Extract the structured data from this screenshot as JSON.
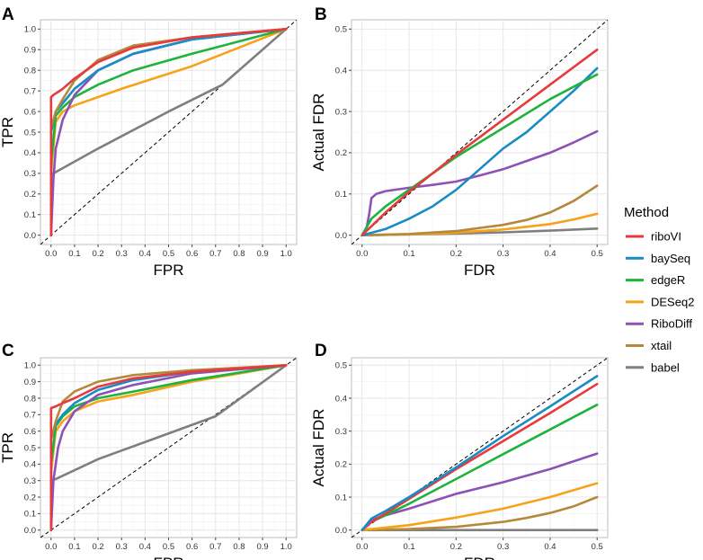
{
  "colors": {
    "riboVI": "#e8393d",
    "baySeq": "#1a8cc4",
    "edgeR": "#1db33c",
    "DESeq2": "#f7a21b",
    "RiboDiff": "#8e51b6",
    "xtail": "#b5893c",
    "babel": "#7f7f7f"
  },
  "legend": {
    "title": "Method",
    "entries": [
      "riboVI",
      "baySeq",
      "edgeR",
      "DESeq2",
      "RiboDiff",
      "xtail",
      "babel"
    ]
  },
  "chart_data": [
    {
      "tag": "A",
      "type": "line",
      "xlabel": "FPR",
      "ylabel": "TPR",
      "xlim": [
        0,
        1
      ],
      "ylim": [
        0,
        1
      ],
      "xticks": [
        "0.0",
        "0.1",
        "0.2",
        "0.3",
        "0.4",
        "0.5",
        "0.6",
        "0.7",
        "0.8",
        "0.9",
        "1.0"
      ],
      "yticks": [
        "0.0",
        "0.1",
        "0.2",
        "0.3",
        "0.4",
        "0.5",
        "0.6",
        "0.7",
        "0.8",
        "0.9",
        "1.0"
      ],
      "diagonal": true,
      "series": [
        {
          "name": "babel",
          "x": [
            0,
            0,
            0.01,
            0.2,
            0.5,
            0.73,
            1
          ],
          "y": [
            0,
            0.29,
            0.3,
            0.42,
            0.6,
            0.73,
            1
          ]
        },
        {
          "name": "DESeq2",
          "x": [
            0,
            0,
            0.02,
            0.05,
            0.1,
            0.3,
            0.6,
            1
          ],
          "y": [
            0,
            0.3,
            0.55,
            0.6,
            0.63,
            0.71,
            0.82,
            1
          ]
        },
        {
          "name": "edgeR",
          "x": [
            0,
            0,
            0.02,
            0.05,
            0.1,
            0.2,
            0.35,
            0.6,
            1
          ],
          "y": [
            0,
            0.35,
            0.58,
            0.62,
            0.67,
            0.73,
            0.8,
            0.88,
            1
          ]
        },
        {
          "name": "RiboDiff",
          "x": [
            0,
            0.01,
            0.02,
            0.05,
            0.1,
            0.2,
            0.35,
            0.6,
            1
          ],
          "y": [
            0,
            0.27,
            0.42,
            0.56,
            0.68,
            0.8,
            0.88,
            0.95,
            1
          ]
        },
        {
          "name": "baySeq",
          "x": [
            0,
            0,
            0.02,
            0.05,
            0.1,
            0.2,
            0.35,
            0.6,
            1
          ],
          "y": [
            0,
            0.5,
            0.6,
            0.64,
            0.71,
            0.8,
            0.88,
            0.95,
            1
          ]
        },
        {
          "name": "xtail",
          "x": [
            0,
            0,
            0.02,
            0.05,
            0.1,
            0.2,
            0.35,
            0.6,
            1
          ],
          "y": [
            0,
            0.52,
            0.6,
            0.66,
            0.75,
            0.85,
            0.92,
            0.96,
            1
          ]
        },
        {
          "name": "riboVI",
          "x": [
            0,
            0,
            0.01,
            0.05,
            0.1,
            0.2,
            0.35,
            0.6,
            1
          ],
          "y": [
            0,
            0.67,
            0.68,
            0.71,
            0.76,
            0.84,
            0.91,
            0.96,
            1
          ]
        }
      ]
    },
    {
      "tag": "B",
      "type": "line",
      "xlabel": "FDR",
      "ylabel": "Actual FDR",
      "xlim": [
        0,
        0.5
      ],
      "ylim": [
        0,
        0.5
      ],
      "xticks": [
        "0.0",
        "0.1",
        "0.2",
        "0.3",
        "0.4",
        "0.5"
      ],
      "yticks": [
        "0.0",
        "0.1",
        "0.2",
        "0.3",
        "0.4",
        "0.5"
      ],
      "diagonal": true,
      "series": [
        {
          "name": "babel",
          "x": [
            0,
            0.1,
            0.2,
            0.3,
            0.4,
            0.5
          ],
          "y": [
            0,
            0.002,
            0.004,
            0.007,
            0.011,
            0.016
          ]
        },
        {
          "name": "DESeq2",
          "x": [
            0,
            0.1,
            0.2,
            0.3,
            0.4,
            0.45,
            0.5
          ],
          "y": [
            0,
            0.002,
            0.006,
            0.014,
            0.027,
            0.038,
            0.052
          ]
        },
        {
          "name": "xtail",
          "x": [
            0,
            0.1,
            0.2,
            0.3,
            0.35,
            0.4,
            0.45,
            0.5
          ],
          "y": [
            0,
            0.003,
            0.01,
            0.025,
            0.037,
            0.055,
            0.083,
            0.12
          ]
        },
        {
          "name": "RiboDiff",
          "x": [
            0,
            0.01,
            0.015,
            0.02,
            0.03,
            0.05,
            0.1,
            0.15,
            0.2,
            0.25,
            0.3,
            0.35,
            0.4,
            0.45,
            0.5
          ],
          "y": [
            0,
            0.02,
            0.05,
            0.09,
            0.1,
            0.107,
            0.115,
            0.122,
            0.13,
            0.145,
            0.16,
            0.18,
            0.2,
            0.225,
            0.252
          ]
        },
        {
          "name": "baySeq",
          "x": [
            0,
            0.05,
            0.1,
            0.15,
            0.2,
            0.25,
            0.3,
            0.35,
            0.4,
            0.45,
            0.5
          ],
          "y": [
            0,
            0.015,
            0.04,
            0.07,
            0.11,
            0.16,
            0.21,
            0.25,
            0.3,
            0.35,
            0.405
          ]
        },
        {
          "name": "edgeR",
          "x": [
            0,
            0.02,
            0.05,
            0.1,
            0.2,
            0.3,
            0.4,
            0.5
          ],
          "y": [
            0,
            0.04,
            0.07,
            0.11,
            0.19,
            0.26,
            0.33,
            0.39
          ]
        },
        {
          "name": "riboVI",
          "x": [
            0,
            0.05,
            0.1,
            0.2,
            0.3,
            0.4,
            0.5
          ],
          "y": [
            0,
            0.055,
            0.105,
            0.195,
            0.28,
            0.365,
            0.45
          ]
        }
      ]
    },
    {
      "tag": "C",
      "type": "line",
      "xlabel": "FPR",
      "ylabel": "TPR",
      "xlim": [
        0,
        1
      ],
      "ylim": [
        0,
        1
      ],
      "xticks": [
        "0.0",
        "0.1",
        "0.2",
        "0.3",
        "0.4",
        "0.5",
        "0.6",
        "0.7",
        "0.8",
        "0.9",
        "1.0"
      ],
      "yticks": [
        "0.0",
        "0.1",
        "0.2",
        "0.3",
        "0.4",
        "0.5",
        "0.6",
        "0.7",
        "0.8",
        "0.9",
        "1.0"
      ],
      "diagonal": true,
      "series": [
        {
          "name": "babel",
          "x": [
            0,
            0,
            0.02,
            0.2,
            0.45,
            0.7,
            1
          ],
          "y": [
            0,
            0.3,
            0.31,
            0.43,
            0.56,
            0.69,
            1
          ]
        },
        {
          "name": "DESeq2",
          "x": [
            0,
            0,
            0.02,
            0.05,
            0.1,
            0.2,
            0.35,
            0.6,
            1
          ],
          "y": [
            0,
            0.35,
            0.6,
            0.66,
            0.72,
            0.78,
            0.82,
            0.9,
            1
          ]
        },
        {
          "name": "edgeR",
          "x": [
            0,
            0,
            0.02,
            0.05,
            0.1,
            0.2,
            0.35,
            0.6,
            1
          ],
          "y": [
            0,
            0.4,
            0.63,
            0.69,
            0.75,
            0.8,
            0.84,
            0.91,
            1
          ]
        },
        {
          "name": "RiboDiff",
          "x": [
            0,
            0.01,
            0.03,
            0.05,
            0.1,
            0.2,
            0.35,
            0.6,
            1
          ],
          "y": [
            0,
            0.3,
            0.5,
            0.6,
            0.72,
            0.82,
            0.88,
            0.95,
            1
          ]
        },
        {
          "name": "baySeq",
          "x": [
            0,
            0,
            0.02,
            0.05,
            0.1,
            0.2,
            0.35,
            0.6,
            1
          ],
          "y": [
            0,
            0.55,
            0.64,
            0.7,
            0.77,
            0.85,
            0.91,
            0.96,
            1
          ]
        },
        {
          "name": "xtail",
          "x": [
            0,
            0,
            0.02,
            0.05,
            0.1,
            0.2,
            0.35,
            0.6,
            1
          ],
          "y": [
            0,
            0.55,
            0.66,
            0.78,
            0.84,
            0.9,
            0.94,
            0.97,
            1
          ]
        },
        {
          "name": "riboVI",
          "x": [
            0,
            0,
            0.02,
            0.05,
            0.1,
            0.2,
            0.35,
            0.6,
            1
          ],
          "y": [
            0,
            0.74,
            0.75,
            0.77,
            0.8,
            0.87,
            0.92,
            0.96,
            1
          ]
        }
      ]
    },
    {
      "tag": "D",
      "type": "line",
      "xlabel": "FDR",
      "ylabel": "Actual FDR",
      "xlim": [
        0,
        0.5
      ],
      "ylim": [
        0,
        0.5
      ],
      "xticks": [
        "0.0",
        "0.1",
        "0.2",
        "0.3",
        "0.4",
        "0.5"
      ],
      "yticks": [
        "0.0",
        "0.1",
        "0.2",
        "0.3",
        "0.4",
        "0.5"
      ],
      "diagonal": true,
      "series": [
        {
          "name": "babel",
          "x": [
            0,
            0.1,
            0.2,
            0.3,
            0.4,
            0.5
          ],
          "y": [
            0,
            0,
            0,
            0,
            0,
            0
          ]
        },
        {
          "name": "xtail",
          "x": [
            0,
            0.1,
            0.2,
            0.3,
            0.35,
            0.4,
            0.45,
            0.5
          ],
          "y": [
            0,
            0.003,
            0.01,
            0.025,
            0.037,
            0.052,
            0.072,
            0.1
          ]
        },
        {
          "name": "DESeq2",
          "x": [
            0,
            0.1,
            0.2,
            0.3,
            0.4,
            0.5
          ],
          "y": [
            0,
            0.015,
            0.038,
            0.065,
            0.1,
            0.142
          ]
        },
        {
          "name": "RiboDiff",
          "x": [
            0,
            0.02,
            0.05,
            0.1,
            0.2,
            0.3,
            0.4,
            0.5
          ],
          "y": [
            0,
            0.03,
            0.045,
            0.065,
            0.11,
            0.145,
            0.185,
            0.232
          ]
        },
        {
          "name": "edgeR",
          "x": [
            0,
            0.02,
            0.05,
            0.1,
            0.2,
            0.3,
            0.4,
            0.5
          ],
          "y": [
            0,
            0.025,
            0.045,
            0.08,
            0.155,
            0.23,
            0.305,
            0.38
          ]
        },
        {
          "name": "riboVI",
          "x": [
            0,
            0.02,
            0.05,
            0.1,
            0.2,
            0.3,
            0.4,
            0.5
          ],
          "y": [
            0,
            0.025,
            0.05,
            0.095,
            0.185,
            0.27,
            0.355,
            0.443
          ]
        },
        {
          "name": "baySeq",
          "x": [
            0,
            0.02,
            0.05,
            0.1,
            0.2,
            0.3,
            0.4,
            0.5
          ],
          "y": [
            0,
            0.035,
            0.058,
            0.1,
            0.19,
            0.285,
            0.375,
            0.467
          ]
        }
      ]
    }
  ]
}
